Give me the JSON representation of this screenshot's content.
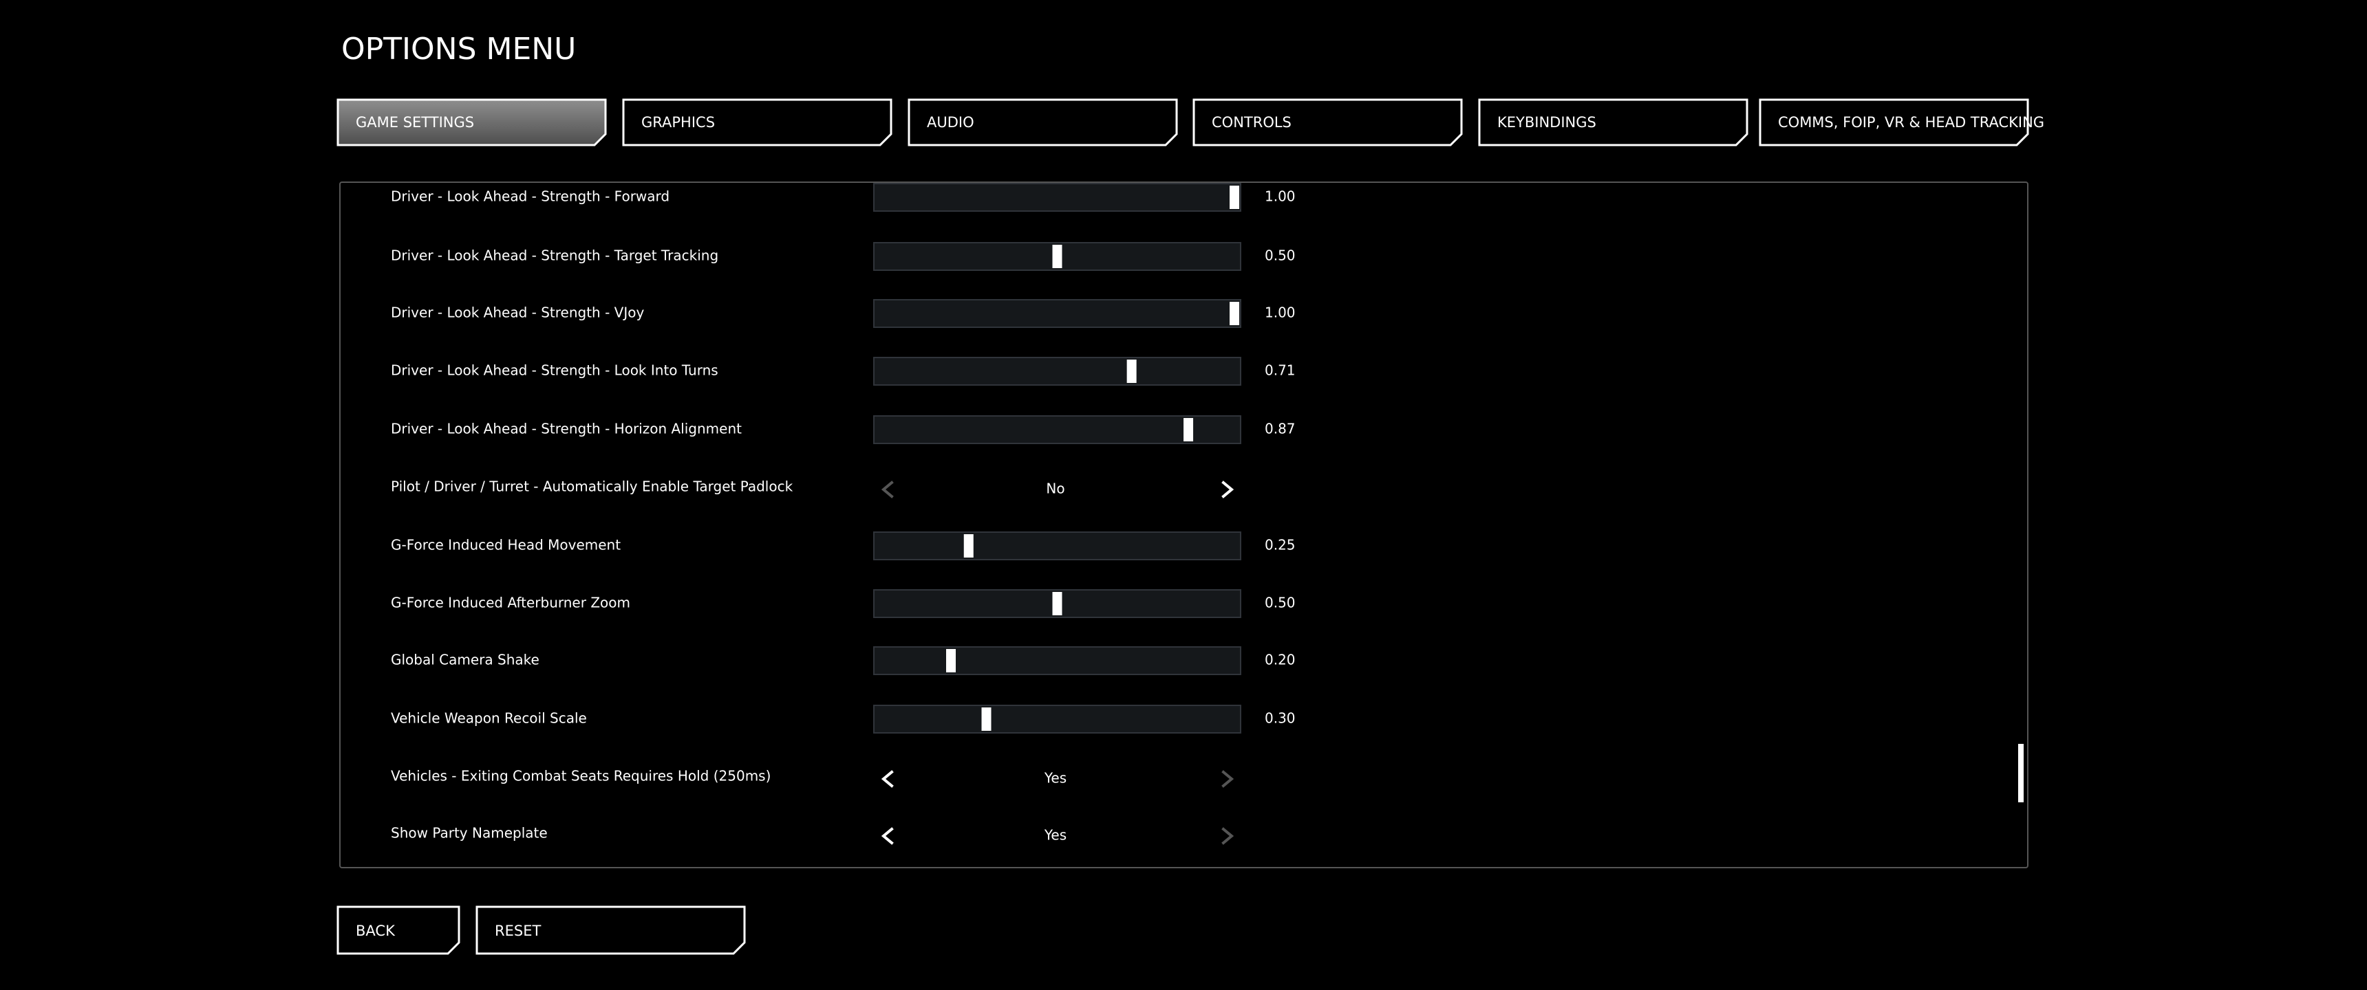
{
  "title": "OPTIONS MENU",
  "tabs": [
    "GAME SETTINGS",
    "GRAPHICS",
    "AUDIO",
    "CONTROLS",
    "KEYBINDINGS",
    "COMMS, FOIP, VR & HEAD TRACKING"
  ],
  "active_tab": 0,
  "slider_range": [
    0,
    1
  ],
  "settings": [
    {
      "label": "Driver - Look Ahead - Strength - Forward",
      "value": 1.0,
      "value_label": "1.00"
    },
    {
      "label": "Driver - Look Ahead - Strength - Target Tracking",
      "value": 0.5,
      "value_label": "0.50"
    },
    {
      "label": "Driver - Look Ahead - Strength - VJoy",
      "value": 1.0,
      "value_label": "1.00"
    },
    {
      "label": "Driver - Look Ahead - Strength - Look Into Turns",
      "value": 0.71,
      "value_label": "0.71"
    },
    {
      "label": "Driver - Look Ahead - Strength - Horizon Alignment",
      "value": 0.87,
      "value_label": "0.87"
    },
    {
      "label": "Pilot / Driver / Turret - Automatically Enable Target Padlock",
      "option": "No",
      "can_decrease": false,
      "can_increase": true
    },
    {
      "label": "G-Force Induced Head Movement",
      "value": 0.25,
      "value_label": "0.25"
    },
    {
      "label": "G-Force Induced Afterburner Zoom",
      "value": 0.5,
      "value_label": "0.50"
    },
    {
      "label": "Global Camera Shake",
      "value": 0.2,
      "value_label": "0.20"
    },
    {
      "label": "Vehicle Weapon Recoil Scale",
      "value": 0.3,
      "value_label": "0.30"
    },
    {
      "label": "Vehicles - Exiting Combat Seats Requires Hold (250ms)",
      "option": "Yes",
      "can_decrease": true,
      "can_increase": false
    },
    {
      "label": "Show Party Nameplate",
      "option": "Yes",
      "can_decrease": true,
      "can_increase": false
    }
  ],
  "buttons": [
    "BACK",
    "RESET"
  ]
}
